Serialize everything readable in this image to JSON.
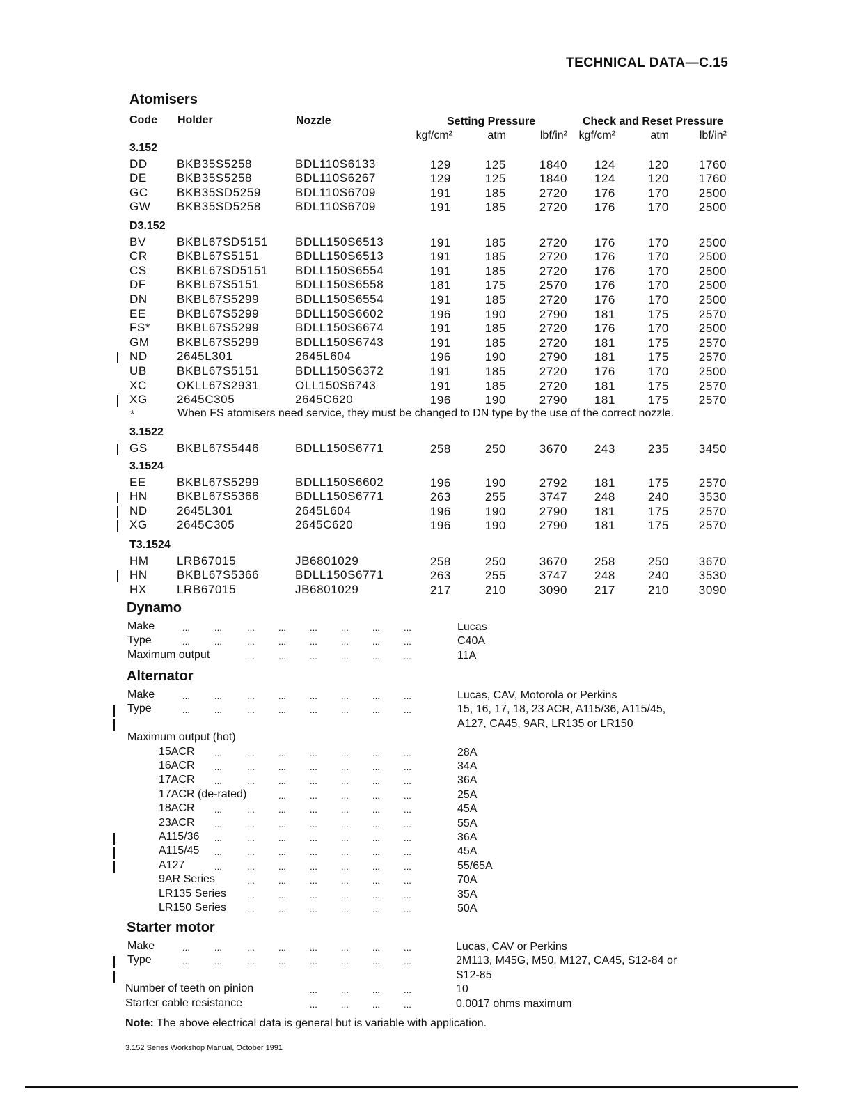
{
  "page_header": "TECHNICAL DATA—C.15",
  "atomisers": {
    "title": "Atomisers",
    "columns": {
      "code": "Code",
      "holder": "Holder",
      "nozzle": "Nozzle",
      "setting": "Setting Pressure",
      "check": "Check and Reset Pressure"
    },
    "units": [
      "kgf/cm²",
      "atm",
      "lbf/in²",
      "kgf/cm²",
      "atm",
      "lbf/in²"
    ],
    "groups": [
      {
        "name": "3.152",
        "rows": [
          {
            "code": "DD",
            "holder": "BKB35S5258",
            "nozzle": "BDL110S6133",
            "values": [
              "129",
              "125",
              "1840",
              "124",
              "120",
              "1760"
            ],
            "changed": false
          },
          {
            "code": "DE",
            "holder": "BKB35S5258",
            "nozzle": "BDL110S6267",
            "values": [
              "129",
              "125",
              "1840",
              "124",
              "120",
              "1760"
            ],
            "changed": false
          },
          {
            "code": "GC",
            "holder": "BKB35SD5259",
            "nozzle": "BDL110S6709",
            "values": [
              "191",
              "185",
              "2720",
              "176",
              "170",
              "2500"
            ],
            "changed": false
          },
          {
            "code": "GW",
            "holder": "BKB35SD5258",
            "nozzle": "BDL110S6709",
            "values": [
              "191",
              "185",
              "2720",
              "176",
              "170",
              "2500"
            ],
            "changed": false
          }
        ]
      },
      {
        "name": "D3.152",
        "rows": [
          {
            "code": "BV",
            "holder": "BKBL67SD5151",
            "nozzle": "BDLL150S6513",
            "values": [
              "191",
              "185",
              "2720",
              "176",
              "170",
              "2500"
            ],
            "changed": false
          },
          {
            "code": "CR",
            "holder": "BKBL67S5151",
            "nozzle": "BDLL150S6513",
            "values": [
              "191",
              "185",
              "2720",
              "176",
              "170",
              "2500"
            ],
            "changed": false
          },
          {
            "code": "CS",
            "holder": "BKBL67SD5151",
            "nozzle": "BDLL150S6554",
            "values": [
              "191",
              "185",
              "2720",
              "176",
              "170",
              "2500"
            ],
            "changed": false
          },
          {
            "code": "DF",
            "holder": "BKBL67S5151",
            "nozzle": "BDLL150S6558",
            "values": [
              "181",
              "175",
              "2570",
              "176",
              "170",
              "2500"
            ],
            "changed": false
          },
          {
            "code": "DN",
            "holder": "BKBL67S5299",
            "nozzle": "BDLL150S6554",
            "values": [
              "191",
              "185",
              "2720",
              "176",
              "170",
              "2500"
            ],
            "changed": false
          },
          {
            "code": "EE",
            "holder": "BKBL67S5299",
            "nozzle": "BDLL150S6602",
            "values": [
              "196",
              "190",
              "2790",
              "181",
              "175",
              "2570"
            ],
            "changed": false
          },
          {
            "code": "FS*",
            "holder": "BKBL67S5299",
            "nozzle": "BDLL150S6674",
            "values": [
              "191",
              "185",
              "2720",
              "176",
              "170",
              "2500"
            ],
            "changed": false
          },
          {
            "code": "GM",
            "holder": "BKBL67S5299",
            "nozzle": "BDLL150S6743",
            "values": [
              "191",
              "185",
              "2720",
              "181",
              "175",
              "2570"
            ],
            "changed": false
          },
          {
            "code": "ND",
            "holder": "2645L301",
            "nozzle": "2645L604",
            "values": [
              "196",
              "190",
              "2790",
              "181",
              "175",
              "2570"
            ],
            "changed": true
          },
          {
            "code": "UB",
            "holder": "BKBL67S5151",
            "nozzle": "BDLL150S6372",
            "values": [
              "191",
              "185",
              "2720",
              "176",
              "170",
              "2500"
            ],
            "changed": false
          },
          {
            "code": "XC",
            "holder": "OKLL67S2931",
            "nozzle": "OLL150S6743",
            "values": [
              "191",
              "185",
              "2720",
              "181",
              "175",
              "2570"
            ],
            "changed": false
          },
          {
            "code": "XG",
            "holder": "2645C305",
            "nozzle": "2645C620",
            "values": [
              "196",
              "190",
              "2790",
              "181",
              "175",
              "2570"
            ],
            "changed": true
          }
        ],
        "footnote_mark": "*",
        "footnote": "When FS atomisers need service, they must be changed to DN type by the use of the correct nozzle."
      },
      {
        "name": "3.1522",
        "rows": [
          {
            "code": "GS",
            "holder": "BKBL67S5446",
            "nozzle": "BDLL150S6771",
            "values": [
              "258",
              "250",
              "3670",
              "243",
              "235",
              "3450"
            ],
            "changed": true
          }
        ]
      },
      {
        "name": "3.1524",
        "rows": [
          {
            "code": "EE",
            "holder": "BKBL67S5299",
            "nozzle": "BDLL150S6602",
            "values": [
              "196",
              "190",
              "2792",
              "181",
              "175",
              "2570"
            ],
            "changed": false
          },
          {
            "code": "HN",
            "holder": "BKBL67S5366",
            "nozzle": "BDLL150S6771",
            "values": [
              "263",
              "255",
              "3747",
              "248",
              "240",
              "3530"
            ],
            "changed": true
          },
          {
            "code": "ND",
            "holder": "2645L301",
            "nozzle": "2645L604",
            "values": [
              "196",
              "190",
              "2790",
              "181",
              "175",
              "2570"
            ],
            "changed": true
          },
          {
            "code": "XG",
            "holder": "2645C305",
            "nozzle": "2645C620",
            "values": [
              "196",
              "190",
              "2790",
              "181",
              "175",
              "2570"
            ],
            "changed": true
          }
        ]
      },
      {
        "name": "T3.1524",
        "rows": [
          {
            "code": "HM",
            "holder": "LRB67015",
            "nozzle": "JB6801029",
            "values": [
              "258",
              "250",
              "3670",
              "258",
              "250",
              "3670"
            ],
            "changed": false
          },
          {
            "code": "HN",
            "holder": "BKBL67S5366",
            "nozzle": "BDLL150S6771",
            "values": [
              "263",
              "255",
              "3747",
              "248",
              "240",
              "3530"
            ],
            "changed": true
          },
          {
            "code": "HX",
            "holder": "LRB67015",
            "nozzle": "JB6801029",
            "values": [
              "217",
              "210",
              "3090",
              "217",
              "210",
              "3090"
            ],
            "changed": false
          }
        ]
      }
    ]
  },
  "electrical": [
    {
      "title": "Dynamo",
      "lines": [
        {
          "label": "Make",
          "value": "Lucas",
          "indent": false,
          "changed": false
        },
        {
          "label": "Type",
          "value": "C40A",
          "indent": false,
          "changed": false
        },
        {
          "label": "Maximum output",
          "value": "11A",
          "indent": false,
          "changed": false
        }
      ]
    },
    {
      "title": "Alternator",
      "lines": [
        {
          "label": "Make",
          "value": "Lucas, CAV, Motorola or Perkins",
          "indent": false,
          "changed": false
        },
        {
          "label": "Type",
          "value": "15, 16, 17, 18, 23 ACR, A115/36, A115/45,",
          "indent": false,
          "changed": true
        },
        {
          "label": "",
          "value": "A127, CA45, 9AR, LR135 or LR150",
          "indent": false,
          "changed": true,
          "nodots": true
        },
        {
          "label": "Maximum output (hot)",
          "value": "",
          "indent": false,
          "changed": false,
          "nodots": true
        },
        {
          "label": "15ACR",
          "value": "28A",
          "indent": true,
          "changed": false
        },
        {
          "label": "16ACR",
          "value": "34A",
          "indent": true,
          "changed": false
        },
        {
          "label": "17ACR",
          "value": "36A",
          "indent": true,
          "changed": false
        },
        {
          "label": "17ACR (de-rated)",
          "value": "25A",
          "indent": true,
          "changed": false
        },
        {
          "label": "18ACR",
          "value": "45A",
          "indent": true,
          "changed": false
        },
        {
          "label": "23ACR",
          "value": "55A",
          "indent": true,
          "changed": false
        },
        {
          "label": "A115/36",
          "value": "36A",
          "indent": true,
          "changed": true
        },
        {
          "label": "A115/45",
          "value": "45A",
          "indent": true,
          "changed": true
        },
        {
          "label": "A127",
          "value": "55/65A",
          "indent": true,
          "changed": true
        },
        {
          "label": "9AR Series",
          "value": "70A",
          "indent": true,
          "changed": false
        },
        {
          "label": "LR135 Series",
          "value": "35A",
          "indent": true,
          "changed": false
        },
        {
          "label": "LR150 Series",
          "value": "50A",
          "indent": true,
          "changed": false
        }
      ]
    },
    {
      "title": "Starter motor",
      "lines": [
        {
          "label": "Make",
          "value": "Lucas, CAV or Perkins",
          "indent": false,
          "changed": false
        },
        {
          "label": "Type",
          "value": "2M113, M45G, M50, M127, CA45, S12-84 or",
          "indent": false,
          "changed": true
        },
        {
          "label": "",
          "value": "S12-85",
          "indent": false,
          "changed": true,
          "nodots": true
        },
        {
          "label": "Number of teeth on pinion",
          "value": "10",
          "indent": false,
          "changed": false,
          "short": true
        },
        {
          "label": "Starter cable resistance",
          "value": "0.0017 ohms maximum",
          "indent": false,
          "changed": false,
          "short": true
        }
      ]
    }
  ],
  "note": {
    "label": "Note:",
    "text": " The above electrical data is general but is variable with application."
  },
  "footer": "3.152 Series Workshop Manual, October 1991"
}
